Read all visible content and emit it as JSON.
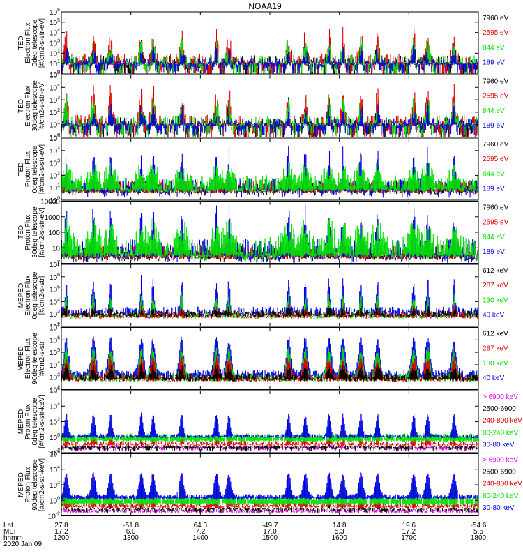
{
  "title": "NOAA19",
  "colors": {
    "black": "#000000",
    "red": "#e00000",
    "green": "#00e000",
    "blue": "#0000e6",
    "magenta": "#e000e0"
  },
  "chart_data": {
    "type": "line",
    "title": "NOAA19",
    "x_range": [
      1200,
      1800
    ],
    "x_tick_values": [
      1200,
      1300,
      1400,
      1500,
      1600,
      1700,
      1800
    ],
    "footer": {
      "row_labels": [
        "Lat",
        "MLT",
        "hhmm",
        "2020 Jan 09"
      ],
      "lat": [
        "27.8",
        "-51.8",
        "64.3",
        "-49.7",
        "14.8",
        "19.6",
        "-54.6"
      ],
      "mlt": [
        "17.2",
        "6.0",
        "7.2",
        "17.0",
        "5.3",
        "17.2",
        "5.5"
      ],
      "hhmm": [
        "1200",
        "1300",
        "1400",
        "1500",
        "1600",
        "1700",
        "1800"
      ]
    },
    "pass_centers": [
      1207,
      1246,
      1271,
      1315,
      1332,
      1373,
      1423,
      1441,
      1527,
      1551,
      1585,
      1605,
      1631,
      1655,
      1707,
      1727,
      1765
    ],
    "panels": [
      {
        "name": "ted-electron-0deg",
        "ylabel": [
          "TED",
          "Electron Flux",
          "0deg telescope",
          "[#/cm2-s-str-eV]"
        ],
        "ylog": true,
        "ylim_exp": [
          0,
          6
        ],
        "ytick_labels": [
          "10^0",
          "10^1",
          "10^2",
          "10^3",
          "10^4",
          "10^5",
          "10^6"
        ],
        "series": [
          {
            "name": "7960 eV",
            "color": "black",
            "floor": 1.0,
            "base": 0.8,
            "spread": 1.0,
            "amp": 1.6,
            "width": 3.0
          },
          {
            "name": "2595 eV",
            "color": "red",
            "floor": 1.0,
            "base": 0.8,
            "spread": 1.2,
            "amp": 2.6,
            "width": 3.2
          },
          {
            "name": "844 eV",
            "color": "green",
            "floor": 1.0,
            "base": 0.8,
            "spread": 1.0,
            "amp": 1.9,
            "width": 3.2
          },
          {
            "name": "189 eV",
            "color": "blue",
            "floor": 1.0,
            "base": 0.8,
            "spread": 0.8,
            "amp": 1.4,
            "width": 2.6
          }
        ]
      },
      {
        "name": "ted-electron-30deg",
        "ylabel": [
          "TED",
          "Electron Flux",
          "30deg telescope",
          "[#/cm2-s-str-eV]"
        ],
        "ylog": true,
        "ylim_exp": [
          0,
          5
        ],
        "ytick_labels": [
          "10^0",
          "10^1",
          "10^2",
          "10^3",
          "10^4",
          "10^5"
        ],
        "series": [
          {
            "name": "7960 eV",
            "color": "black",
            "floor": 1.0,
            "base": 0.7,
            "spread": 0.9,
            "amp": 1.7,
            "width": 3.2
          },
          {
            "name": "2595 eV",
            "color": "red",
            "floor": 1.0,
            "base": 0.8,
            "spread": 1.0,
            "amp": 2.5,
            "width": 3.2
          },
          {
            "name": "844 eV",
            "color": "green",
            "floor": 1.0,
            "base": 0.8,
            "spread": 0.9,
            "amp": 1.9,
            "width": 3.2
          },
          {
            "name": "189 eV",
            "color": "blue",
            "floor": 1.0,
            "base": 0.8,
            "spread": 0.7,
            "amp": 1.3,
            "width": 2.6
          }
        ]
      },
      {
        "name": "ted-proton-0deg",
        "ylabel": [
          "TED",
          "Proton Flux",
          "0deg telescope",
          "[#/cm2-s-str-eV]"
        ],
        "ylog": true,
        "ylim_exp": [
          0,
          5
        ],
        "ytick_labels": [
          "10^0",
          "10^1",
          "10^2",
          "10^3",
          "10^4",
          "10^5"
        ],
        "series": [
          {
            "name": "7960 eV",
            "color": "black",
            "floor": 0.7,
            "base": 1.0,
            "spread": 0.6,
            "amp": 0.3,
            "width": 4
          },
          {
            "name": "2595 eV",
            "color": "red",
            "floor": 0.7,
            "base": 1.1,
            "spread": 0.5,
            "amp": 0.4,
            "width": 4
          },
          {
            "name": "189 eV",
            "color": "blue",
            "floor": 0.8,
            "base": 1.0,
            "spread": 0.8,
            "amp": 2.6,
            "width": 2.4
          },
          {
            "name": "844 eV",
            "color": "green",
            "floor": 0.8,
            "base": 1.3,
            "spread": 0.7,
            "amp": 1.1,
            "width": 9
          }
        ]
      },
      {
        "name": "ted-proton-30deg",
        "ylabel": [
          "TED",
          "Proton Flux",
          "30deg telescope",
          "[#/cm2-s-str-eV]"
        ],
        "ylog": true,
        "ylim_exp": [
          0,
          4
        ],
        "ytick_labels": [
          "1",
          "10",
          "100",
          "1000",
          "10000"
        ],
        "series": [
          {
            "name": "7960 eV",
            "color": "black",
            "floor": 0.4,
            "base": 0.6,
            "spread": 0.5,
            "amp": 0.3,
            "width": 4
          },
          {
            "name": "2595 eV",
            "color": "red",
            "floor": 0.4,
            "base": 0.7,
            "spread": 0.5,
            "amp": 0.4,
            "width": 4
          },
          {
            "name": "189 eV",
            "color": "blue",
            "floor": 0.5,
            "base": 0.8,
            "spread": 0.8,
            "amp": 2.3,
            "width": 2.4
          },
          {
            "name": "844 eV",
            "color": "green",
            "floor": 0.5,
            "base": 0.9,
            "spread": 0.8,
            "amp": 1.3,
            "width": 9
          }
        ]
      },
      {
        "name": "meped-electron-0deg",
        "ylabel": [
          "MEPED",
          "Electron Flux",
          "0deg telescope",
          "[#/cm2-s-str]"
        ],
        "ylog": true,
        "ylim_exp": [
          2,
          7
        ],
        "ytick_labels": [
          "10^2",
          "10^3",
          "10^4",
          "10^5",
          "10^6",
          "10^7"
        ],
        "series": [
          {
            "name": "40 keV",
            "color": "blue",
            "floor": 3.0,
            "base": 3.2,
            "spread": 0.4,
            "amp": 2.6,
            "width": 2.2
          },
          {
            "name": "130 keV",
            "color": "green",
            "floor": 2.8,
            "base": 2.9,
            "spread": 0.3,
            "amp": 1.6,
            "width": 2.2
          },
          {
            "name": "287 keV",
            "color": "red",
            "floor": 2.8,
            "base": 2.9,
            "spread": 0.3,
            "amp": 0.6,
            "width": 2.6
          },
          {
            "name": "612 keV",
            "color": "black",
            "floor": 2.9,
            "base": 3.0,
            "spread": 0.3,
            "amp": 0.4,
            "width": 2.6
          }
        ]
      },
      {
        "name": "meped-electron-90deg",
        "ylabel": [
          "MEPED",
          "Electron Flux",
          "90deg telescope",
          "[#/cm2-s-str]"
        ],
        "ylog": true,
        "ylim_exp": [
          2,
          7
        ],
        "ytick_labels": [
          "10^2",
          "10^3",
          "10^4",
          "10^5",
          "10^6",
          "10^7"
        ],
        "series": [
          {
            "name": "40 keV",
            "color": "blue",
            "floor": 3.0,
            "base": 3.3,
            "spread": 0.3,
            "amp": 2.8,
            "width": 4.5
          },
          {
            "name": "130 keV",
            "color": "green",
            "floor": 2.8,
            "base": 3.0,
            "spread": 0.3,
            "amp": 2.2,
            "width": 4.5
          },
          {
            "name": "287 keV",
            "color": "red",
            "floor": 2.8,
            "base": 2.9,
            "spread": 0.3,
            "amp": 1.6,
            "width": 4.5
          },
          {
            "name": "612 keV",
            "color": "black",
            "floor": 2.8,
            "base": 3.0,
            "spread": 0.3,
            "amp": 0.8,
            "width": 4
          }
        ]
      },
      {
        "name": "meped-proton-0deg",
        "ylabel": [
          "MEPED",
          "Proton Flux",
          "0deg telescope",
          "[#/cm2-s-str-keV]"
        ],
        "ylog": true,
        "ylim_exp": [
          -2,
          6
        ],
        "ytick_labels": [
          "10^-2",
          "10^0",
          "10^2",
          "10^4",
          "10^6"
        ],
        "series": [
          {
            "name": "> 6900 keV",
            "color": "magenta",
            "floor": -1.3,
            "base": -1.5,
            "spread": 0.2,
            "amp": 0.2,
            "width": 2
          },
          {
            "name": "2500-6900",
            "color": "black",
            "floor": -1.2,
            "base": -1.5,
            "spread": 0.3,
            "amp": 0.5,
            "width": 2
          },
          {
            "name": "240-800 keV",
            "color": "red",
            "floor": -1.0,
            "base": -0.8,
            "spread": 0.3,
            "amp": 0.8,
            "width": 2.5
          },
          {
            "name": "80-240 keV",
            "color": "green",
            "floor": -0.5,
            "base": 0.2,
            "spread": 0.3,
            "amp": 1.6,
            "width": 3
          },
          {
            "name": "30-80 keV",
            "color": "blue",
            "floor": 0.0,
            "base": 0.2,
            "spread": 0.2,
            "amp": 2.8,
            "width": 3
          }
        ]
      },
      {
        "name": "meped-proton-90deg",
        "ylabel": [
          "MEPED",
          "Proton Flux",
          "90deg telescope",
          "[#/cm2-s-str-keV]"
        ],
        "ylog": true,
        "ylim_exp": [
          -2,
          6
        ],
        "ytick_labels": [
          "10^-2",
          "10^0",
          "10^2",
          "10^4",
          "10^6"
        ],
        "series": [
          {
            "name": "> 6900 keV",
            "color": "magenta",
            "floor": -1.3,
            "base": -1.5,
            "spread": 0.2,
            "amp": 0.2,
            "width": 2
          },
          {
            "name": "2500-6900",
            "color": "black",
            "floor": -1.1,
            "base": -1.3,
            "spread": 0.3,
            "amp": 0.6,
            "width": 2
          },
          {
            "name": "240-800 keV",
            "color": "red",
            "floor": -0.9,
            "base": -0.6,
            "spread": 0.3,
            "amp": 0.8,
            "width": 2.5
          },
          {
            "name": "80-240 keV",
            "color": "green",
            "floor": -0.5,
            "base": 0.3,
            "spread": 0.3,
            "amp": 1.7,
            "width": 4
          },
          {
            "name": "30-80 keV",
            "color": "blue",
            "floor": 0.2,
            "base": 0.6,
            "spread": 0.2,
            "amp": 2.9,
            "width": 4
          }
        ]
      }
    ]
  }
}
